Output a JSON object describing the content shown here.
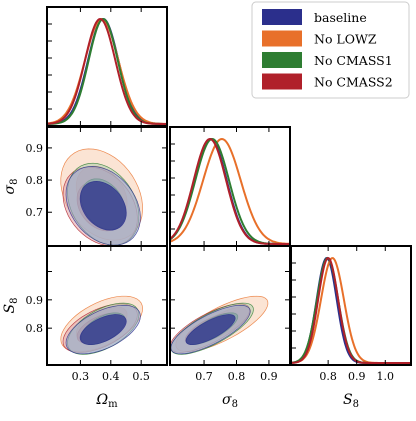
{
  "chart_data": {
    "type": "corner",
    "parameters": [
      {
        "key": "Om",
        "label": "Ω",
        "sub": "m",
        "range": [
          0.19,
          0.585
        ],
        "ticks": [
          "0.3",
          "0.4",
          "0.5"
        ]
      },
      {
        "key": "sigma8",
        "label": "σ",
        "sub": "8",
        "range": [
          0.595,
          0.965
        ],
        "ticks": [
          "0.7",
          "0.8",
          "0.9"
        ]
      },
      {
        "key": "S8",
        "label": "S",
        "sub": "8",
        "range": [
          0.67,
          1.09
        ],
        "ticks": [
          "0.8",
          "0.9",
          "1.0"
        ]
      }
    ],
    "legend_position": "top-right",
    "series": [
      {
        "name": "baseline",
        "color": "#2b2f8c",
        "fill_inner": "#2b2f8c",
        "fill_outer": "#9fa2d4",
        "mean": {
          "Om": 0.375,
          "sigma8": 0.72,
          "S8": 0.795
        },
        "sd": {
          "Om": 0.05,
          "sigma8": 0.05,
          "S8": 0.035
        },
        "corr_Om_sigma8": -0.3
      },
      {
        "name": "No LOWZ",
        "color": "#e8702a",
        "fill_inner": "#f3a97a",
        "fill_outer": "#f8cdb1",
        "mean": {
          "Om": 0.37,
          "sigma8": 0.755,
          "S8": 0.815
        },
        "sd": {
          "Om": 0.055,
          "sigma8": 0.058,
          "S8": 0.04
        },
        "corr_Om_sigma8": -0.3
      },
      {
        "name": "No CMASS1",
        "color": "#2e7d32",
        "fill_inner": "#6aa96b",
        "fill_outer": "#aed0ad",
        "mean": {
          "Om": 0.375,
          "sigma8": 0.725,
          "S8": 0.798
        },
        "sd": {
          "Om": 0.048,
          "sigma8": 0.052,
          "S8": 0.037
        },
        "corr_Om_sigma8": -0.3
      },
      {
        "name": "No CMASS2",
        "color": "#b0202a",
        "fill_inner": "#c9585e",
        "fill_outer": "#e0a2a6",
        "mean": {
          "Om": 0.365,
          "sigma8": 0.718,
          "S8": 0.8
        },
        "sd": {
          "Om": 0.05,
          "sigma8": 0.05,
          "S8": 0.035
        },
        "corr_Om_sigma8": -0.3
      }
    ]
  }
}
